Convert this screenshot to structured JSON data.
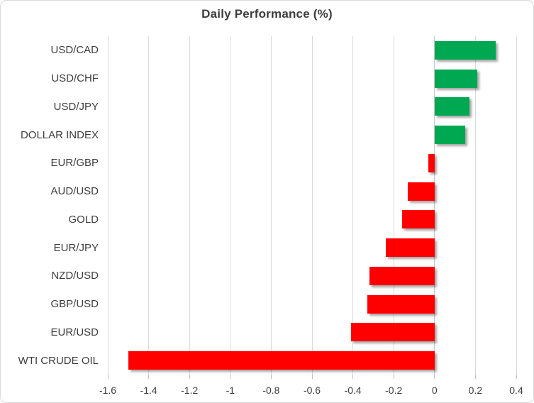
{
  "chart_data": {
    "type": "bar",
    "orientation": "horizontal",
    "title": "Daily Performance (%)",
    "categories": [
      "USD/CAD",
      "USD/CHF",
      "USD/JPY",
      "DOLLAR INDEX",
      "EUR/GBP",
      "AUD/USD",
      "GOLD",
      "EUR/JPY",
      "NZD/USD",
      "GBP/USD",
      "EUR/USD",
      "WTI CRUDE OIL"
    ],
    "values": [
      0.3,
      0.21,
      0.17,
      0.15,
      -0.03,
      -0.13,
      -0.16,
      -0.24,
      -0.32,
      -0.33,
      -0.41,
      -1.5
    ],
    "xlim": [
      -1.6,
      0.4
    ],
    "x_ticks": [
      -1.6,
      -1.4,
      -1.2,
      -1,
      -0.8,
      -0.6,
      -0.4,
      -0.2,
      0,
      0.2,
      0.4
    ],
    "x_tick_labels": [
      "-1.6",
      "-1.4",
      "-1.2",
      "-1",
      "-0.8",
      "-0.6",
      "-0.4",
      "-0.2",
      "0",
      "0.2",
      "0.4"
    ],
    "grid": "vertical-only",
    "legend": "none",
    "colors": {
      "positive": "#00a852",
      "negative": "#ff0000",
      "gridline": "#d9d9d9",
      "zero_axis_line": "#c6c6c6",
      "tick_mark": "#bfbfbf",
      "text": "#3d3d3d",
      "frame_border": "#d9d9d9",
      "background": "#ffffff"
    }
  }
}
